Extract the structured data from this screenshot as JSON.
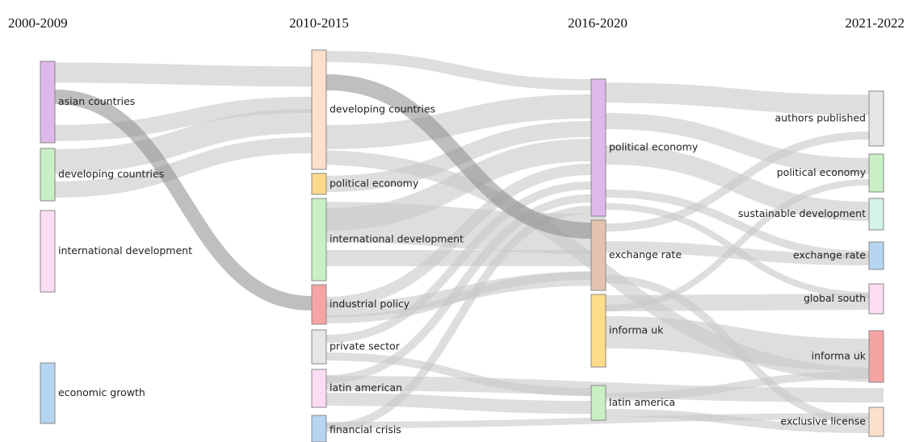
{
  "columns": [
    {
      "title": "2000-2009",
      "nodes": [
        {
          "label": "asian countries",
          "color": "#ddb8e8"
        },
        {
          "label": "developing countries",
          "color": "#c9efc4"
        },
        {
          "label": "international development",
          "color": "#fcdcf3"
        },
        {
          "label": "economic growth",
          "color": "#b5d5f0"
        }
      ]
    },
    {
      "title": "2010-2015",
      "nodes": [
        {
          "label": "developing countries",
          "color": "#fde0cc"
        },
        {
          "label": "political economy",
          "color": "#fdd98c"
        },
        {
          "label": "international development",
          "color": "#c9efc4"
        },
        {
          "label": "industrial policy",
          "color": "#f6a3a3"
        },
        {
          "label": "private sector",
          "color": "#e6e6e6"
        },
        {
          "label": "latin american",
          "color": "#fcdcf3"
        },
        {
          "label": "financial crisis",
          "color": "#b5d5f0"
        }
      ]
    },
    {
      "title": "2016-2020",
      "nodes": [
        {
          "label": "political economy",
          "color": "#ddb8e8"
        },
        {
          "label": "exchange rate",
          "color": "#e3c3ae"
        },
        {
          "label": "informa uk",
          "color": "#fddd8a"
        },
        {
          "label": "latin america",
          "color": "#c9efc4"
        }
      ]
    },
    {
      "title": "2021-2022",
      "nodes": [
        {
          "label": "authors published",
          "color": "#e6e6e6"
        },
        {
          "label": "political economy",
          "color": "#c9efc4"
        },
        {
          "label": "sustainable development",
          "color": "#d4f1ea"
        },
        {
          "label": "exchange rate",
          "color": "#b5d5f0"
        },
        {
          "label": "global south",
          "color": "#fcdcf3"
        },
        {
          "label": "informa uk",
          "color": "#f6a3a3"
        },
        {
          "label": "exclusive license",
          "color": "#fde0cc"
        }
      ]
    }
  ]
}
